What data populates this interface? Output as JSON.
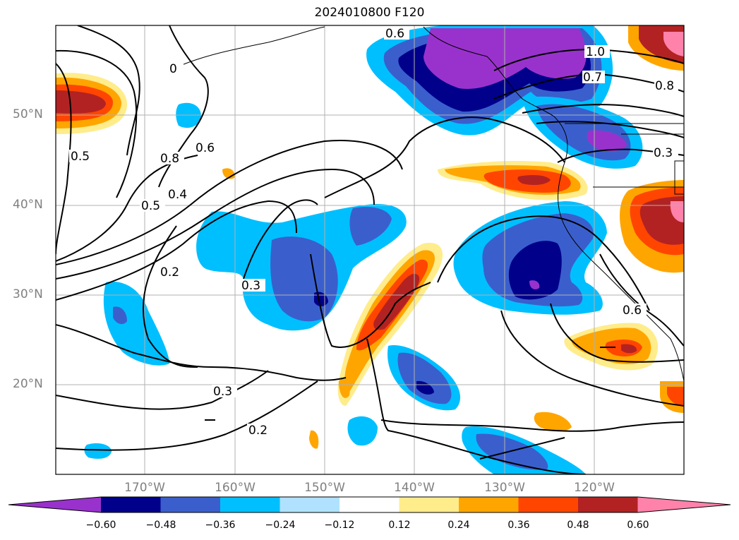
{
  "title": "2024010800 F120",
  "lat_labels": [
    "50°N",
    "40°N",
    "30°N",
    "20°N"
  ],
  "lon_labels": [
    "170°W",
    "160°W",
    "150°W",
    "140°W",
    "130°W",
    "120°W"
  ],
  "colorbar": {
    "ticks": [
      "−0.60",
      "−0.48",
      "−0.36",
      "−0.24",
      "−0.12",
      "0.12",
      "0.24",
      "0.36",
      "0.48",
      "0.60"
    ],
    "colors": [
      "#9932cc",
      "#00008b",
      "#3a5fcd",
      "#00bfff",
      "#b0e2ff",
      "#ffffff",
      "#ffec8b",
      "#ffa500",
      "#ff4500",
      "#b22222",
      "#ff82ab"
    ]
  },
  "contour_labels": [
    "0.6",
    "1.0",
    "0.7",
    "0.8",
    "0.3",
    "0",
    "0.5",
    "0.8",
    "0.6",
    "0.5",
    "0.4",
    "0.2",
    "0.3",
    "0.3",
    "0.2",
    "0.6"
  ]
}
